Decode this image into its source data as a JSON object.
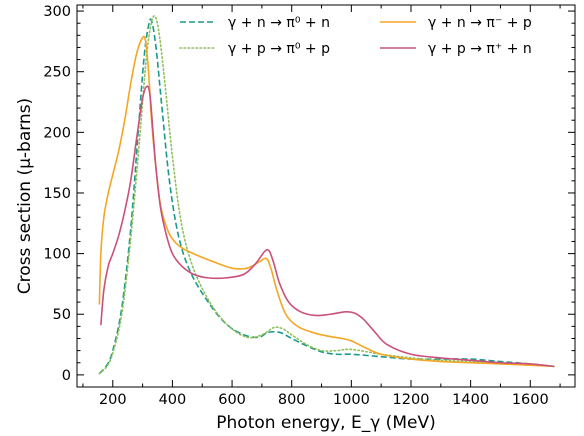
{
  "chart_data": {
    "type": "line",
    "xlabel": "Photon energy, E_γ (MeV)",
    "ylabel": "Cross section (μ-barns)",
    "xlim": [
      80,
      1750
    ],
    "ylim": [
      -10,
      305
    ],
    "xticks": [
      200,
      400,
      600,
      800,
      1000,
      1200,
      1400,
      1600
    ],
    "yticks": [
      0,
      50,
      100,
      150,
      200,
      250,
      300
    ],
    "grid": false,
    "legend_placement": "top-right",
    "series": [
      {
        "name": "γ + n → π⁰ + n",
        "color": "#1a9a8a",
        "style": "dashed",
        "x": [
          155,
          180,
          200,
          230,
          260,
          285,
          305,
          320,
          330,
          345,
          365,
          390,
          420,
          460,
          520,
          580,
          640,
          690,
          720,
          760,
          800,
          850,
          900,
          950,
          1000,
          1100,
          1200,
          1300,
          1400,
          1500,
          1600,
          1680
        ],
        "y": [
          1,
          8,
          20,
          55,
          120,
          200,
          262,
          288,
          292,
          270,
          220,
          160,
          115,
          85,
          60,
          42,
          33,
          31,
          35,
          35,
          30,
          24,
          19,
          17,
          17,
          15,
          13,
          13,
          13,
          11,
          9,
          7
        ]
      },
      {
        "name": "γ + p → π⁰ + p",
        "color": "#8fbf5a",
        "style": "dotted",
        "x": [
          155,
          180,
          200,
          230,
          260,
          290,
          310,
          325,
          340,
          355,
          375,
          400,
          430,
          470,
          530,
          590,
          650,
          700,
          740,
          770,
          800,
          850,
          900,
          950,
          1000,
          1100,
          1200,
          1300,
          1400,
          1500,
          1600,
          1680
        ],
        "y": [
          1,
          7,
          18,
          50,
          112,
          195,
          255,
          285,
          296,
          282,
          240,
          180,
          125,
          88,
          58,
          40,
          31,
          33,
          39,
          38,
          33,
          25,
          20,
          20,
          21,
          17,
          14,
          12,
          11,
          10,
          8,
          7
        ]
      },
      {
        "name": "γ + n → π⁻ + p",
        "color": "#f5a623",
        "style": "solid",
        "x": [
          155,
          160,
          170,
          185,
          200,
          220,
          240,
          260,
          280,
          300,
          310,
          320,
          330,
          345,
          360,
          380,
          400,
          430,
          470,
          530,
          600,
          650,
          690,
          715,
          730,
          750,
          780,
          820,
          870,
          920,
          970,
          1000,
          1050,
          1100,
          1200,
          1300,
          1400,
          1500,
          1600,
          1680
        ],
        "y": [
          58,
          100,
          130,
          150,
          165,
          185,
          210,
          240,
          265,
          278,
          275,
          250,
          210,
          170,
          140,
          122,
          112,
          105,
          100,
          94,
          88,
          88,
          93,
          96,
          88,
          70,
          50,
          40,
          35,
          32,
          30,
          28,
          22,
          17,
          13,
          11,
          10,
          9,
          8,
          7
        ]
      },
      {
        "name": "γ + p → π⁺ + n",
        "color": "#c9517a",
        "style": "solid",
        "x": [
          160,
          170,
          185,
          200,
          220,
          240,
          260,
          280,
          300,
          315,
          325,
          335,
          345,
          360,
          380,
          400,
          430,
          470,
          520,
          580,
          640,
          680,
          710,
          725,
          740,
          760,
          790,
          830,
          880,
          930,
          980,
          1010,
          1040,
          1080,
          1120,
          1200,
          1300,
          1400,
          1500,
          1600,
          1680
        ],
        "y": [
          41,
          70,
          90,
          100,
          115,
          135,
          160,
          195,
          228,
          238,
          230,
          200,
          170,
          138,
          115,
          100,
          90,
          83,
          80,
          80,
          83,
          92,
          102,
          102,
          92,
          75,
          60,
          52,
          49,
          50,
          52,
          51,
          46,
          35,
          25,
          17,
          14,
          12,
          10,
          9,
          7
        ]
      }
    ]
  }
}
